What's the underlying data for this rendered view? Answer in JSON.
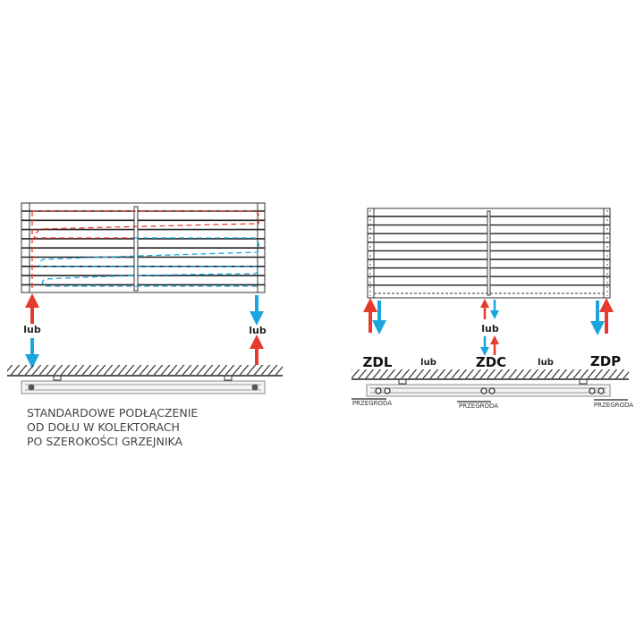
{
  "left_diagram": {
    "lub_left": "lub",
    "lub_right": "lub",
    "caption": [
      "STANDARDOWE PODŁĄCZENIE",
      "OD DOŁU W KOLEKTORACH",
      "PO SZEROKOŚCI GRZEJNIKA"
    ]
  },
  "right_diagram": {
    "lub_center": "lub",
    "zdl": "ZDL",
    "lub_1": "lub",
    "zdc": "ZDC",
    "lub_2": "lub",
    "zdp": "ZDP",
    "przegroda_left": "PRZEGRODA",
    "przegroda_center": "PRZEGRODA",
    "przegroda_right": "PRZEGRODA"
  },
  "colors": {
    "supply": "#e63a2e",
    "return": "#1aa6dc",
    "line": "#2a2a2a"
  }
}
